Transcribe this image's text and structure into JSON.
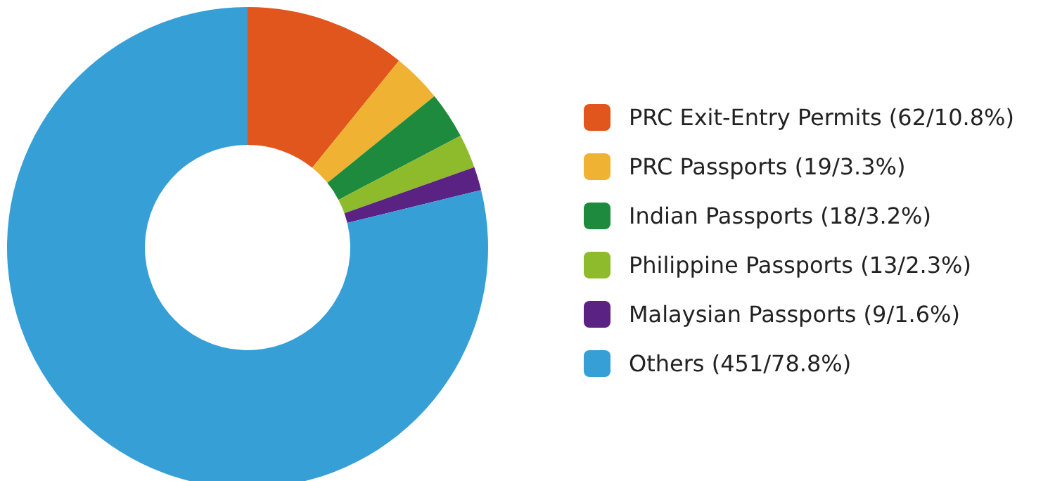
{
  "chart_data": {
    "type": "donut",
    "categories": [
      "PRC Exit-Entry Permits (62/10.8%)",
      "PRC Passports (19/3.3%)",
      "Indian Passports (18/3.2%)",
      "Philippine Passports (13/2.3%)",
      "Malaysian Passports (9/1.6%)",
      "Others (451/78.8%)"
    ],
    "values": [
      62,
      19,
      18,
      13,
      9,
      451
    ],
    "colors": [
      "#e0561c",
      "#f0b232",
      "#1e8a3e",
      "#8dbb2b",
      "#5a2282",
      "#369fd6"
    ],
    "legend": "right"
  }
}
